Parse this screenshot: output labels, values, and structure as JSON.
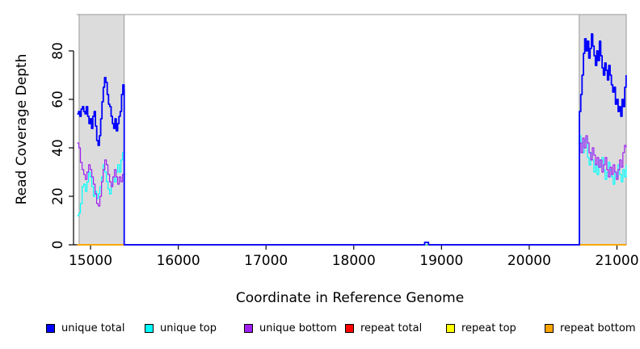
{
  "chart_data": {
    "type": "line",
    "step": true,
    "title": "",
    "xlabel": "Coordinate in Reference Genome",
    "ylabel": "Read Coverage Depth",
    "xlim": [
      14843,
      21106
    ],
    "ylim": [
      0,
      95
    ],
    "x_ticks": [
      15000,
      16000,
      17000,
      18000,
      19000,
      20000,
      21000
    ],
    "y_ticks": [
      0,
      20,
      40,
      60,
      80
    ],
    "grid": false,
    "axis_color": "#000000",
    "highlight_regions": [
      {
        "x0": 14870,
        "x1": 15383
      },
      {
        "x0": 20570,
        "x1": 21106
      }
    ],
    "region_fill": "#dcdcdc",
    "region_border": "#9a9a9a",
    "legend_position": "bottom",
    "legend": [
      {
        "label": "unique total",
        "color": "#0000ff"
      },
      {
        "label": "unique top",
        "color": "#00ffff"
      },
      {
        "label": "unique bottom",
        "color": "#a020f0"
      },
      {
        "label": "repeat total",
        "color": "#ff0000"
      },
      {
        "label": "repeat top",
        "color": "#ffff00"
      },
      {
        "label": "repeat bottom",
        "color": "#ffa500"
      }
    ],
    "series": [
      {
        "name": "repeat total",
        "color": "#ff0000",
        "width": 1.4,
        "segments": [
          {
            "pts": [
              [
                14848,
                0
              ],
              [
                21104,
                0
              ]
            ]
          }
        ]
      },
      {
        "name": "repeat top",
        "color": "#ffff00",
        "width": 1.4,
        "segments": [
          {
            "pts": [
              [
                14848,
                0
              ],
              [
                21104,
                0
              ]
            ]
          }
        ]
      },
      {
        "name": "repeat bottom",
        "color": "#ffa500",
        "width": 1.6,
        "segments": [
          {
            "pts": [
              [
                14848,
                0
              ],
              [
                21104,
                0
              ]
            ]
          }
        ]
      },
      {
        "name": "unique top",
        "color": "#00ffff",
        "width": 1.2,
        "segments": [
          {
            "x0": 14848,
            "x1": 15383,
            "v": [
              12,
              13,
              17,
              24,
              25,
              22,
              26,
              30,
              28,
              24,
              20,
              22,
              19,
              21,
              24,
              28,
              33,
              30,
              26,
              23,
              21,
              25,
              28,
              26,
              30,
              33,
              30,
              35,
              38,
              40
            ]
          },
          {
            "pts": [
              [
                15384,
                0
              ],
              [
                20568,
                0
              ]
            ]
          },
          {
            "x0": 20572,
            "x1": 21104,
            "v": [
              45,
              42,
              38,
              43,
              44,
              36,
              33,
              38,
              35,
              30,
              33,
              29,
              35,
              32,
              36,
              31,
              27,
              30,
              34,
              31,
              28,
              25,
              30,
              28,
              33,
              29,
              26,
              31,
              28,
              33
            ]
          }
        ]
      },
      {
        "name": "unique bottom",
        "color": "#a020f0",
        "width": 1.2,
        "segments": [
          {
            "x0": 14848,
            "x1": 15383,
            "v": [
              42,
              40,
              34,
              31,
              29,
              27,
              30,
              33,
              31,
              28,
              25,
              21,
              17,
              16,
              20,
              26,
              31,
              35,
              33,
              29,
              26,
              24,
              28,
              31,
              28,
              25,
              28,
              26,
              29,
              26
            ]
          },
          {
            "pts": [
              [
                15384,
                0
              ],
              [
                18806,
                0
              ],
              [
                18808,
                1
              ],
              [
                18850,
                1
              ],
              [
                18852,
                0
              ],
              [
                20568,
                0
              ]
            ]
          },
          {
            "x0": 20572,
            "x1": 21104,
            "v": [
              42,
              38,
              44,
              40,
              45,
              42,
              38,
              35,
              40,
              37,
              33,
              36,
              32,
              35,
              30,
              33,
              36,
              31,
              28,
              32,
              29,
              33,
              30,
              27,
              31,
              35,
              32,
              38,
              41,
              40
            ]
          }
        ]
      },
      {
        "name": "unique total",
        "color": "#0000ff",
        "width": 1.8,
        "segments": [
          {
            "x0": 14848,
            "x1": 15383,
            "v": [
              54,
              55,
              53,
              56,
              57,
              55,
              54,
              57,
              53,
              50,
              52,
              48,
              53,
              55,
              49,
              43,
              41,
              45,
              52,
              59,
              65,
              69,
              67,
              62,
              58,
              57,
              53,
              50,
              48,
              52,
              47,
              50,
              53,
              55,
              62,
              66,
              64
            ]
          },
          {
            "pts": [
              [
                15384,
                0
              ],
              [
                18806,
                0
              ],
              [
                18808,
                1
              ],
              [
                18850,
                1
              ],
              [
                18852,
                0
              ],
              [
                20568,
                0
              ]
            ]
          },
          {
            "x0": 20572,
            "x1": 21104,
            "v": [
              55,
              62,
              70,
              79,
              85,
              80,
              84,
              77,
              81,
              87,
              82,
              78,
              74,
              80,
              76,
              84,
              78,
              73,
              70,
              75,
              72,
              68,
              74,
              70,
              66,
              63,
              65,
              58,
              60,
              55,
              57,
              53,
              60,
              57,
              65,
              70
            ]
          }
        ]
      }
    ]
  }
}
